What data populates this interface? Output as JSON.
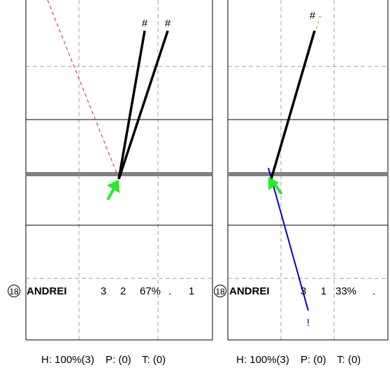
{
  "panels": [
    {
      "id": "left",
      "row": {
        "seq": "18",
        "name": "ANDREI",
        "col_a": "3",
        "col_b": "2",
        "pct": "67%",
        "dot": ".",
        "extra": "1"
      },
      "footer": {
        "h": "H: 100%(3)",
        "p": "P: (0)",
        "t": "T: (0)"
      },
      "markers": [
        "#",
        "#"
      ]
    },
    {
      "id": "right",
      "row": {
        "seq": "18",
        "name": "ANDREI",
        "col_a": "3",
        "col_b": "1",
        "pct": "33%",
        "dot": "."
      },
      "footer": {
        "h": "H: 100%(3)",
        "p": "P: (0)",
        "t": "T: (0)"
      },
      "markers": [
        "#",
        "-",
        "!"
      ]
    }
  ],
  "colors": {
    "frame": "#000000",
    "dashed_grid": "#a0a0a0",
    "baseline_bar": "#808080",
    "shot_line": "#000000",
    "red_dashed": "#dd2222",
    "orange_dashed": "#c88a2a",
    "blue_line": "#0000cc",
    "arrow": "#22ee22"
  }
}
